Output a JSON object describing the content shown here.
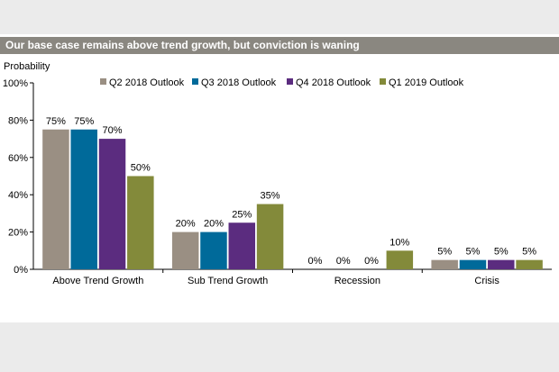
{
  "header": {
    "title": "Our base case remains above trend growth, but conviction is waning"
  },
  "chart_data": {
    "type": "bar",
    "ylabel": "Probability",
    "ylim": [
      0,
      100
    ],
    "yticks": [
      "0%",
      "20%",
      "40%",
      "60%",
      "80%",
      "100%"
    ],
    "categories": [
      "Above Trend Growth",
      "Sub Trend Growth",
      "Recession",
      "Crisis"
    ],
    "series": [
      {
        "name": "Q2 2018 Outlook",
        "color": "#9a8f83",
        "values": [
          75,
          20,
          0,
          5
        ]
      },
      {
        "name": "Q3 2018 Outlook",
        "color": "#006a9a",
        "values": [
          75,
          20,
          0,
          5
        ]
      },
      {
        "name": "Q4 2018 Outlook",
        "color": "#5b2c7f",
        "values": [
          70,
          25,
          0,
          5
        ]
      },
      {
        "name": "Q1 2019 Outlook",
        "color": "#838a3a",
        "values": [
          50,
          35,
          10,
          5
        ]
      }
    ],
    "value_suffix": "%",
    "grid": false,
    "legend_position": "top"
  }
}
